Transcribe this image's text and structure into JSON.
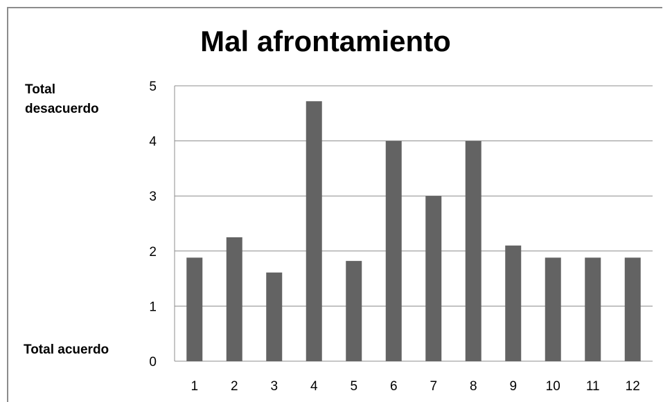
{
  "chart_data": {
    "type": "bar",
    "title": "Mal afrontamiento",
    "categories": [
      "1",
      "2",
      "3",
      "4",
      "5",
      "6",
      "7",
      "8",
      "9",
      "10",
      "11",
      "12"
    ],
    "values": [
      1.88,
      2.25,
      1.61,
      4.72,
      1.82,
      4.0,
      3.0,
      4.0,
      2.1,
      1.88,
      1.88,
      1.88
    ],
    "ylim": [
      0,
      5
    ],
    "yticks": [
      "0",
      "1",
      "2",
      "3",
      "4",
      "5"
    ],
    "y_annotations": {
      "top": "Total desacuerdo",
      "bottom": "Total acuerdo"
    },
    "xlabel": "",
    "ylabel": "",
    "grid": true,
    "bar_color": "#636363",
    "grid_color": "#8c8c8c"
  }
}
